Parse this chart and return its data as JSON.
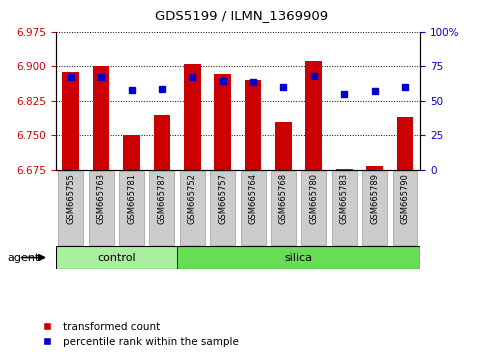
{
  "title": "GDS5199 / ILMN_1369909",
  "samples": [
    "GSM665755",
    "GSM665763",
    "GSM665781",
    "GSM665787",
    "GSM665752",
    "GSM665757",
    "GSM665764",
    "GSM665768",
    "GSM665780",
    "GSM665783",
    "GSM665789",
    "GSM665790"
  ],
  "bar_values": [
    6.887,
    6.9,
    6.751,
    6.795,
    6.905,
    6.884,
    6.871,
    6.78,
    6.912,
    6.678,
    6.684,
    6.79
  ],
  "blue_values": [
    6.876,
    6.876,
    6.848,
    6.851,
    6.876,
    6.869,
    6.867,
    6.856,
    6.878,
    6.84,
    6.847,
    6.856
  ],
  "ymin": 6.675,
  "ymax": 6.975,
  "yticks": [
    6.675,
    6.75,
    6.825,
    6.9,
    6.975
  ],
  "y2ticks_labels": [
    "0",
    "25",
    "50",
    "75",
    "100%"
  ],
  "bar_color": "#cc0000",
  "blue_color": "#0000cc",
  "n_control": 4,
  "control_color": "#aaeea0",
  "silica_color": "#66dd55",
  "agent_label": "agent",
  "control_label": "control",
  "silica_label": "silica",
  "legend_bar_label": "transformed count",
  "legend_blue_label": "percentile rank within the sample",
  "ylabel_color": "#cc0000",
  "y2label_color": "#0000cc",
  "tick_bg_color": "#cccccc",
  "tick_edge_color": "#999999"
}
